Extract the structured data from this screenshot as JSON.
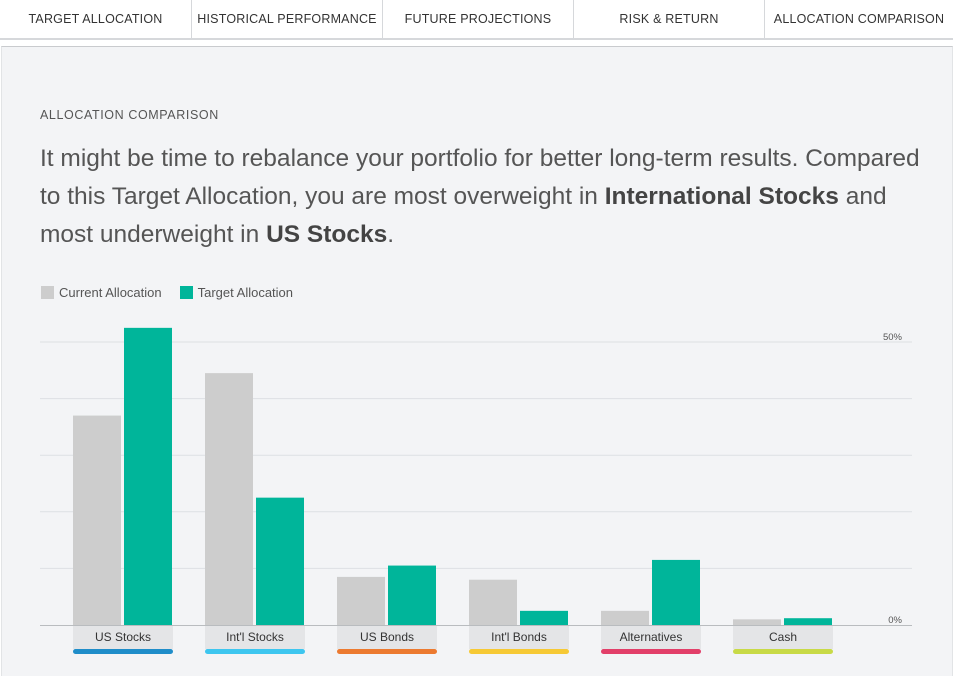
{
  "tabs": [
    {
      "label": "TARGET ALLOCATION"
    },
    {
      "label": "HISTORICAL PERFORMANCE"
    },
    {
      "label": "FUTURE PROJECTIONS"
    },
    {
      "label": "RISK & RETURN"
    },
    {
      "label": "ALLOCATION COMPARISON"
    }
  ],
  "section_title": "ALLOCATION COMPARISON",
  "headline": {
    "line1": "It might be time to rebalance your portfolio for better long-term results. Compared to this Target Allocation, you are most overweight in ",
    "overweight": "International Stocks",
    "middle": " and most underweight in ",
    "underweight": "US Stocks",
    "end": "."
  },
  "legend": {
    "current": "Current Allocation",
    "target": "Target Allocation"
  },
  "colors": {
    "current": "#cdcdcd",
    "target": "#00b59a",
    "grid": "#dde0e3"
  },
  "chart_data": {
    "type": "bar",
    "categories": [
      "US Stocks",
      "Int'l Stocks",
      "US Bonds",
      "Int'l Bonds",
      "Alternatives",
      "Cash"
    ],
    "category_colors": [
      "#1f8dc9",
      "#3ec6ef",
      "#ec7a30",
      "#f6c935",
      "#e23f69",
      "#c8da47"
    ],
    "series": [
      {
        "name": "Current Allocation",
        "values": [
          37,
          44.5,
          8.5,
          8,
          2.5,
          1
        ]
      },
      {
        "name": "Target Allocation",
        "values": [
          52.5,
          22.5,
          10.5,
          2.5,
          11.5,
          1.2
        ]
      }
    ],
    "ylim": [
      0,
      50
    ],
    "y_tick_labels": {
      "max": "50%",
      "min": "0%"
    },
    "gridlines": 5
  }
}
